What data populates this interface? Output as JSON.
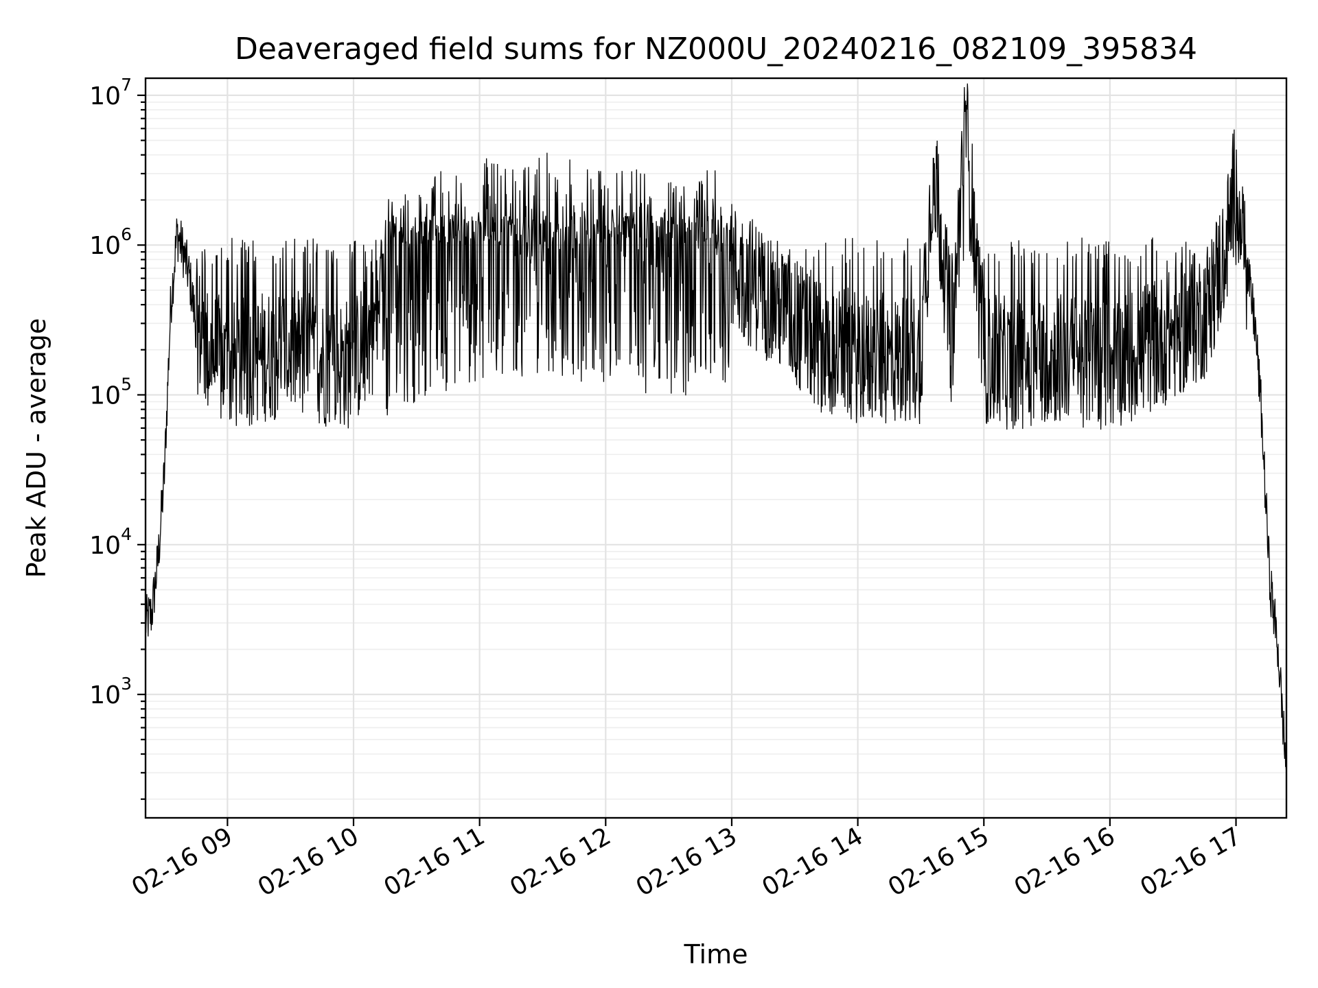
{
  "chart_data": {
    "type": "line",
    "title": "Deaveraged field sums for NZ000U_20240216_082109_395834",
    "xlabel": "Time",
    "ylabel": "Peak ADU - average",
    "xscale": "time",
    "yscale": "log",
    "xlim": [
      "2024-02-16 08:21",
      "2024-02-16 17:24"
    ],
    "ylim": [
      150,
      13000000
    ],
    "grid": true,
    "x_ticks": [
      "2024-02-16 09:00",
      "2024-02-16 10:00",
      "2024-02-16 11:00",
      "2024-02-16 12:00",
      "2024-02-16 13:00",
      "2024-02-16 14:00",
      "2024-02-16 15:00",
      "2024-02-16 16:00",
      "2024-02-16 17:00"
    ],
    "x_tick_labels": [
      "02-16 09",
      "02-16 10",
      "02-16 11",
      "02-16 12",
      "02-16 13",
      "02-16 14",
      "02-16 15",
      "02-16 16",
      "02-16 17"
    ],
    "y_ticks": [
      1000,
      10000,
      100000,
      1000000,
      10000000
    ],
    "y_tick_labels": [
      {
        "base": "10",
        "exp": "3"
      },
      {
        "base": "10",
        "exp": "4"
      },
      {
        "base": "10",
        "exp": "5"
      },
      {
        "base": "10",
        "exp": "6"
      },
      {
        "base": "10",
        "exp": "7"
      }
    ],
    "series": [
      {
        "color": "#000000",
        "x": [
          "2024-02-16 08:21",
          "2024-02-16 08:24",
          "2024-02-16 08:27",
          "2024-02-16 08:30",
          "2024-02-16 08:33",
          "2024-02-16 08:36",
          "2024-02-16 08:39",
          "2024-02-16 08:42",
          "2024-02-16 08:45",
          "2024-02-16 08:50",
          "2024-02-16 09:00",
          "2024-02-16 09:15",
          "2024-02-16 09:30",
          "2024-02-16 09:45",
          "2024-02-16 10:00",
          "2024-02-16 10:15",
          "2024-02-16 10:30",
          "2024-02-16 10:45",
          "2024-02-16 11:00",
          "2024-02-16 11:15",
          "2024-02-16 11:30",
          "2024-02-16 11:45",
          "2024-02-16 12:00",
          "2024-02-16 12:15",
          "2024-02-16 12:30",
          "2024-02-16 12:45",
          "2024-02-16 13:00",
          "2024-02-16 13:15",
          "2024-02-16 13:30",
          "2024-02-16 13:45",
          "2024-02-16 14:00",
          "2024-02-16 14:15",
          "2024-02-16 14:30",
          "2024-02-16 14:36",
          "2024-02-16 14:45",
          "2024-02-16 14:51",
          "2024-02-16 15:00",
          "2024-02-16 15:15",
          "2024-02-16 15:30",
          "2024-02-16 15:45",
          "2024-02-16 16:00",
          "2024-02-16 16:15",
          "2024-02-16 16:30",
          "2024-02-16 16:45",
          "2024-02-16 16:55",
          "2024-02-16 17:00",
          "2024-02-16 17:05",
          "2024-02-16 17:09",
          "2024-02-16 17:12",
          "2024-02-16 17:16",
          "2024-02-16 17:20",
          "2024-02-16 17:24"
        ],
        "values": [
          3000,
          3500,
          8000,
          30000,
          400000,
          1200000,
          900000,
          600000,
          300000,
          200000,
          150000,
          180000,
          200000,
          170000,
          160000,
          400000,
          500000,
          600000,
          700000,
          700000,
          750000,
          700000,
          650000,
          600000,
          500000,
          550000,
          700000,
          500000,
          300000,
          200000,
          180000,
          170000,
          180000,
          3800000,
          200000,
          7800000,
          170000,
          160000,
          180000,
          170000,
          160000,
          200000,
          250000,
          350000,
          900000,
          2900000,
          700000,
          300000,
          80000,
          6000,
          2000,
          300
        ]
      }
    ]
  }
}
